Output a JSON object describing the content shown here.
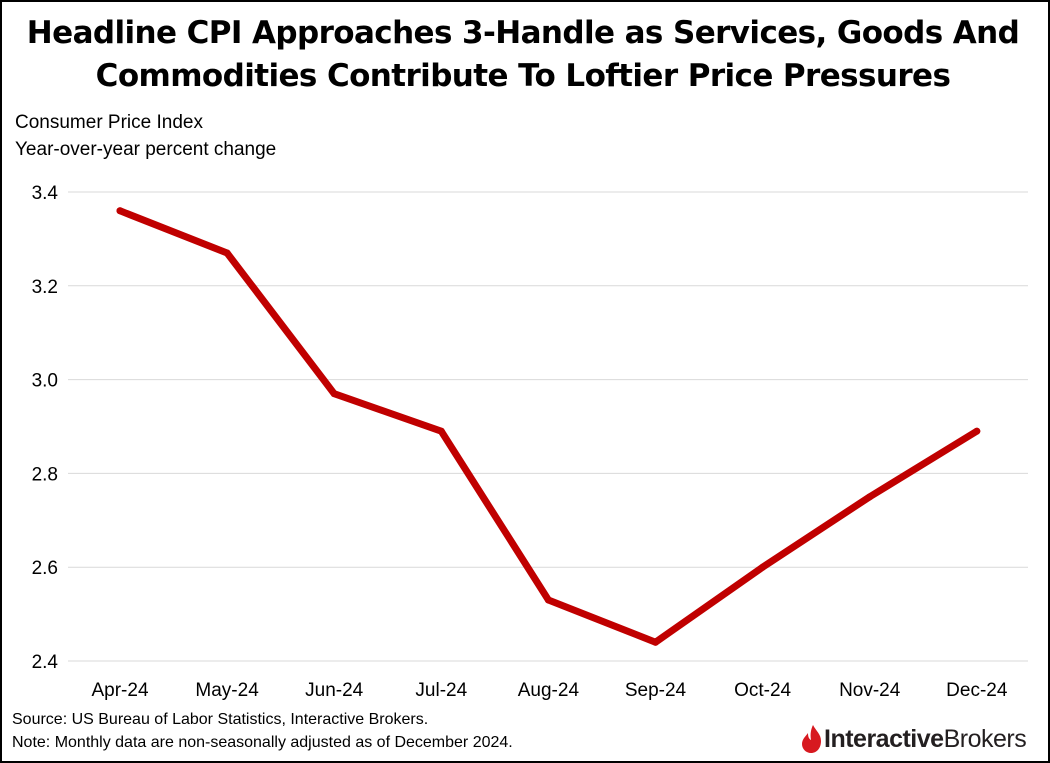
{
  "title_lines": [
    "Headline CPI Approaches 3-Handle as Services, Goods And",
    "Commodities Contribute To Loftier Price Pressures"
  ],
  "subtitle_lines": [
    "Consumer Price Index",
    "Year-over-year percent change"
  ],
  "footer": {
    "source": "Source: US Bureau of Labor Statistics, Interactive Brokers.",
    "note": "Note: Monthly data are non-seasonally adjusted as of December 2024."
  },
  "logo": {
    "bold": "Interactive",
    "light": "Brokers",
    "icon": "interactive-brokers-flame-icon"
  },
  "colors": {
    "line": "#c00000",
    "grid": "#d9d9d9",
    "logo_red": "#d71920"
  },
  "chart_data": {
    "type": "line",
    "title": "Headline CPI Approaches 3-Handle as Services, Goods And Commodities Contribute To Loftier Price Pressures",
    "subtitle": "Consumer Price Index / Year-over-year percent change",
    "categories": [
      "Apr-24",
      "May-24",
      "Jun-24",
      "Jul-24",
      "Aug-24",
      "Sep-24",
      "Oct-24",
      "Nov-24",
      "Dec-24"
    ],
    "series": [
      {
        "values": [
          3.36,
          3.27,
          2.97,
          2.89,
          2.53,
          2.44,
          2.6,
          2.75,
          2.89
        ]
      }
    ],
    "ylim": [
      2.4,
      3.4
    ],
    "yticks": [
      2.4,
      2.6,
      2.8,
      3.0,
      3.2,
      3.4
    ],
    "ytick_labels": [
      "2.4",
      "2.6",
      "2.8",
      "3.0",
      "3.2",
      "3.4"
    ],
    "grid": "horizontal",
    "legend": "none"
  }
}
